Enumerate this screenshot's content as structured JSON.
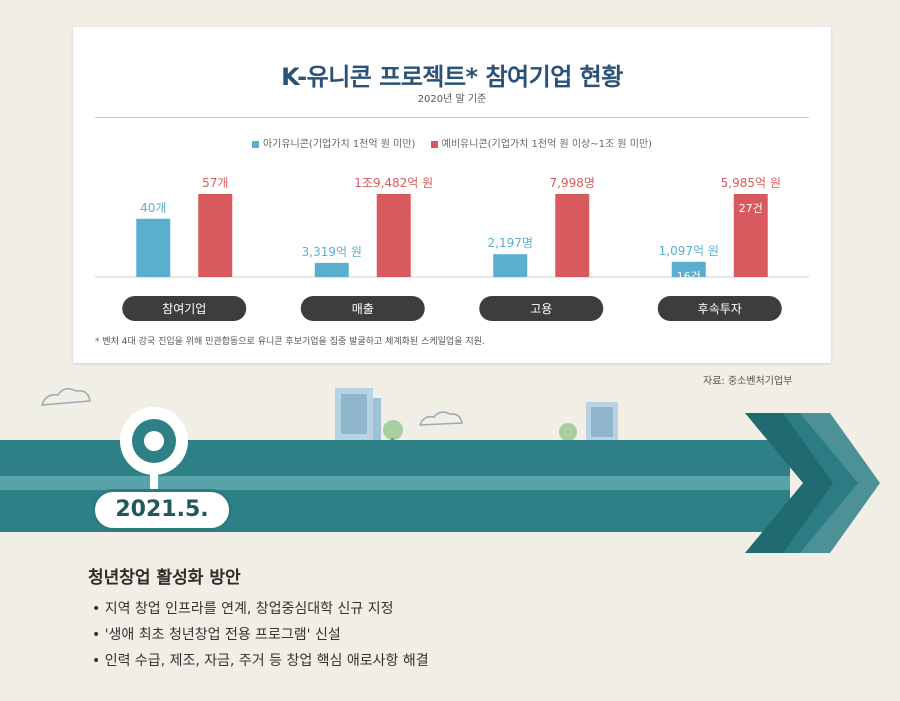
{
  "chart": {
    "title": "K-유니콘 프로젝트* 참여기업 현황",
    "subtitle": "2020년 말 기준",
    "legend": {
      "baby": "아기유니콘(기업가치 1천억 원 미만)",
      "pre": "예비유니콘(기업가치 1천억 원 이상~1조 원 미만)"
    },
    "footnote": "* 벤처 4대 강국 진입을 위해 민관합동으로 유니콘 후보기업을 집중 발굴하고 체계화된 스케일업을 지원.",
    "source": "자료: 중소벤처기업부"
  },
  "chart_data": {
    "type": "bar",
    "title": "K-유니콘 프로젝트* 참여기업 현황",
    "subtitle": "2020년 말 기준",
    "colors": {
      "baby": "#5aafcf",
      "pre": "#d85a5e"
    },
    "categories": [
      "참여기업",
      "매출",
      "고용",
      "후속투자"
    ],
    "series": [
      {
        "name": "아기유니콘(기업가치 1천억 원 미만)",
        "values": [
          40,
          3319,
          2197,
          1097
        ],
        "labels": [
          "40개",
          "3,319억 원",
          "2,197명",
          "1,097억 원"
        ],
        "inner_labels": [
          "",
          "",
          "",
          "16건"
        ]
      },
      {
        "name": "예비유니콘(기업가치 1천억 원 이상~1조 원 미만)",
        "values": [
          57,
          19482,
          7998,
          5985
        ],
        "labels": [
          "57개",
          "1조9,482억 원",
          "7,998명",
          "5,985억 원"
        ],
        "inner_labels": [
          "",
          "",
          "",
          "27건"
        ]
      }
    ]
  },
  "timeline": {
    "date": "2021.5.",
    "heading": "청년창업 활성화 방안",
    "bullets": [
      "• 지역 창업 인프라를 연계, 창업중심대학 신규 지정",
      "• '생애 최초 청년창업 전용 프로그램' 신설",
      "• 인력 수급, 제조, 자금, 주거 등 창업 핵심 애로사항 해결"
    ]
  }
}
